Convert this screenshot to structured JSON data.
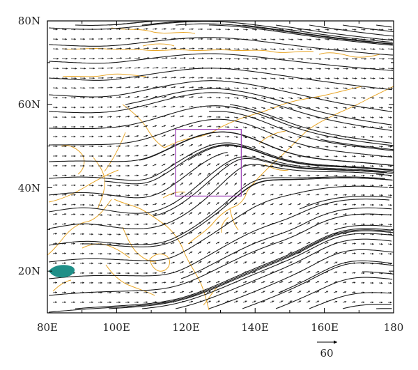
{
  "map": {
    "x_axis_labels": [
      "80E",
      "100E",
      "120E",
      "140E",
      "160E",
      "180"
    ],
    "y_axis_labels": [
      "20N",
      "40N",
      "60N",
      "80N"
    ],
    "lon_range": [
      80,
      180
    ],
    "lat_range": [
      10,
      80
    ],
    "reference_vector_label": "60",
    "highlight_box": {
      "lon": [
        117,
        136
      ],
      "lat": [
        38,
        54
      ]
    },
    "colors": {
      "streamline": "#1a1a1a",
      "coastline": "#e8a628",
      "highlight_box": "#9b3fb5",
      "shaded_patch": "#1f8f88",
      "frame": "#000000"
    }
  }
}
